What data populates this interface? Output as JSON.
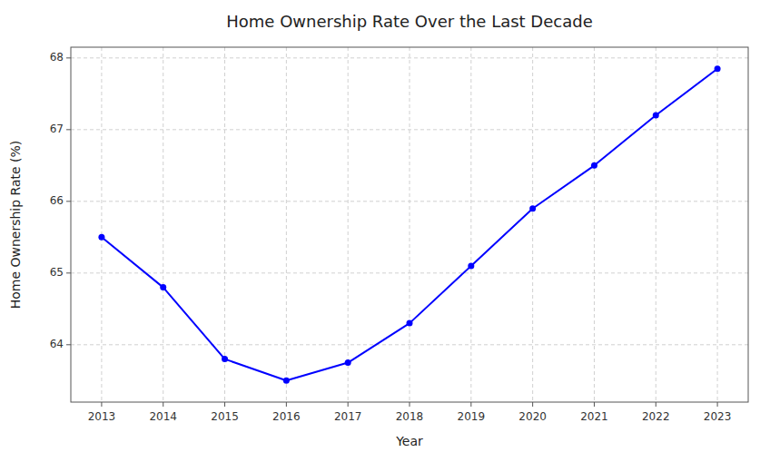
{
  "chart_data": {
    "type": "line",
    "title": "Home Ownership Rate Over the Last Decade",
    "xlabel": "Year",
    "ylabel": "Home Ownership Rate (%)",
    "x": [
      2013,
      2014,
      2015,
      2016,
      2017,
      2018,
      2019,
      2020,
      2021,
      2022,
      2023
    ],
    "values": [
      65.5,
      64.8,
      63.8,
      63.5,
      63.75,
      64.3,
      65.1,
      65.9,
      66.5,
      67.2,
      67.85
    ],
    "color": "blue",
    "marker": "circle",
    "xlim": [
      2012.5,
      2023.5
    ],
    "xticks": [
      2013,
      2014,
      2015,
      2016,
      2017,
      2018,
      2019,
      2020,
      2021,
      2022,
      2023
    ],
    "ylim": [
      63.2,
      68.15
    ],
    "yticks": [
      64,
      65,
      66,
      67,
      68
    ],
    "grid": true
  }
}
